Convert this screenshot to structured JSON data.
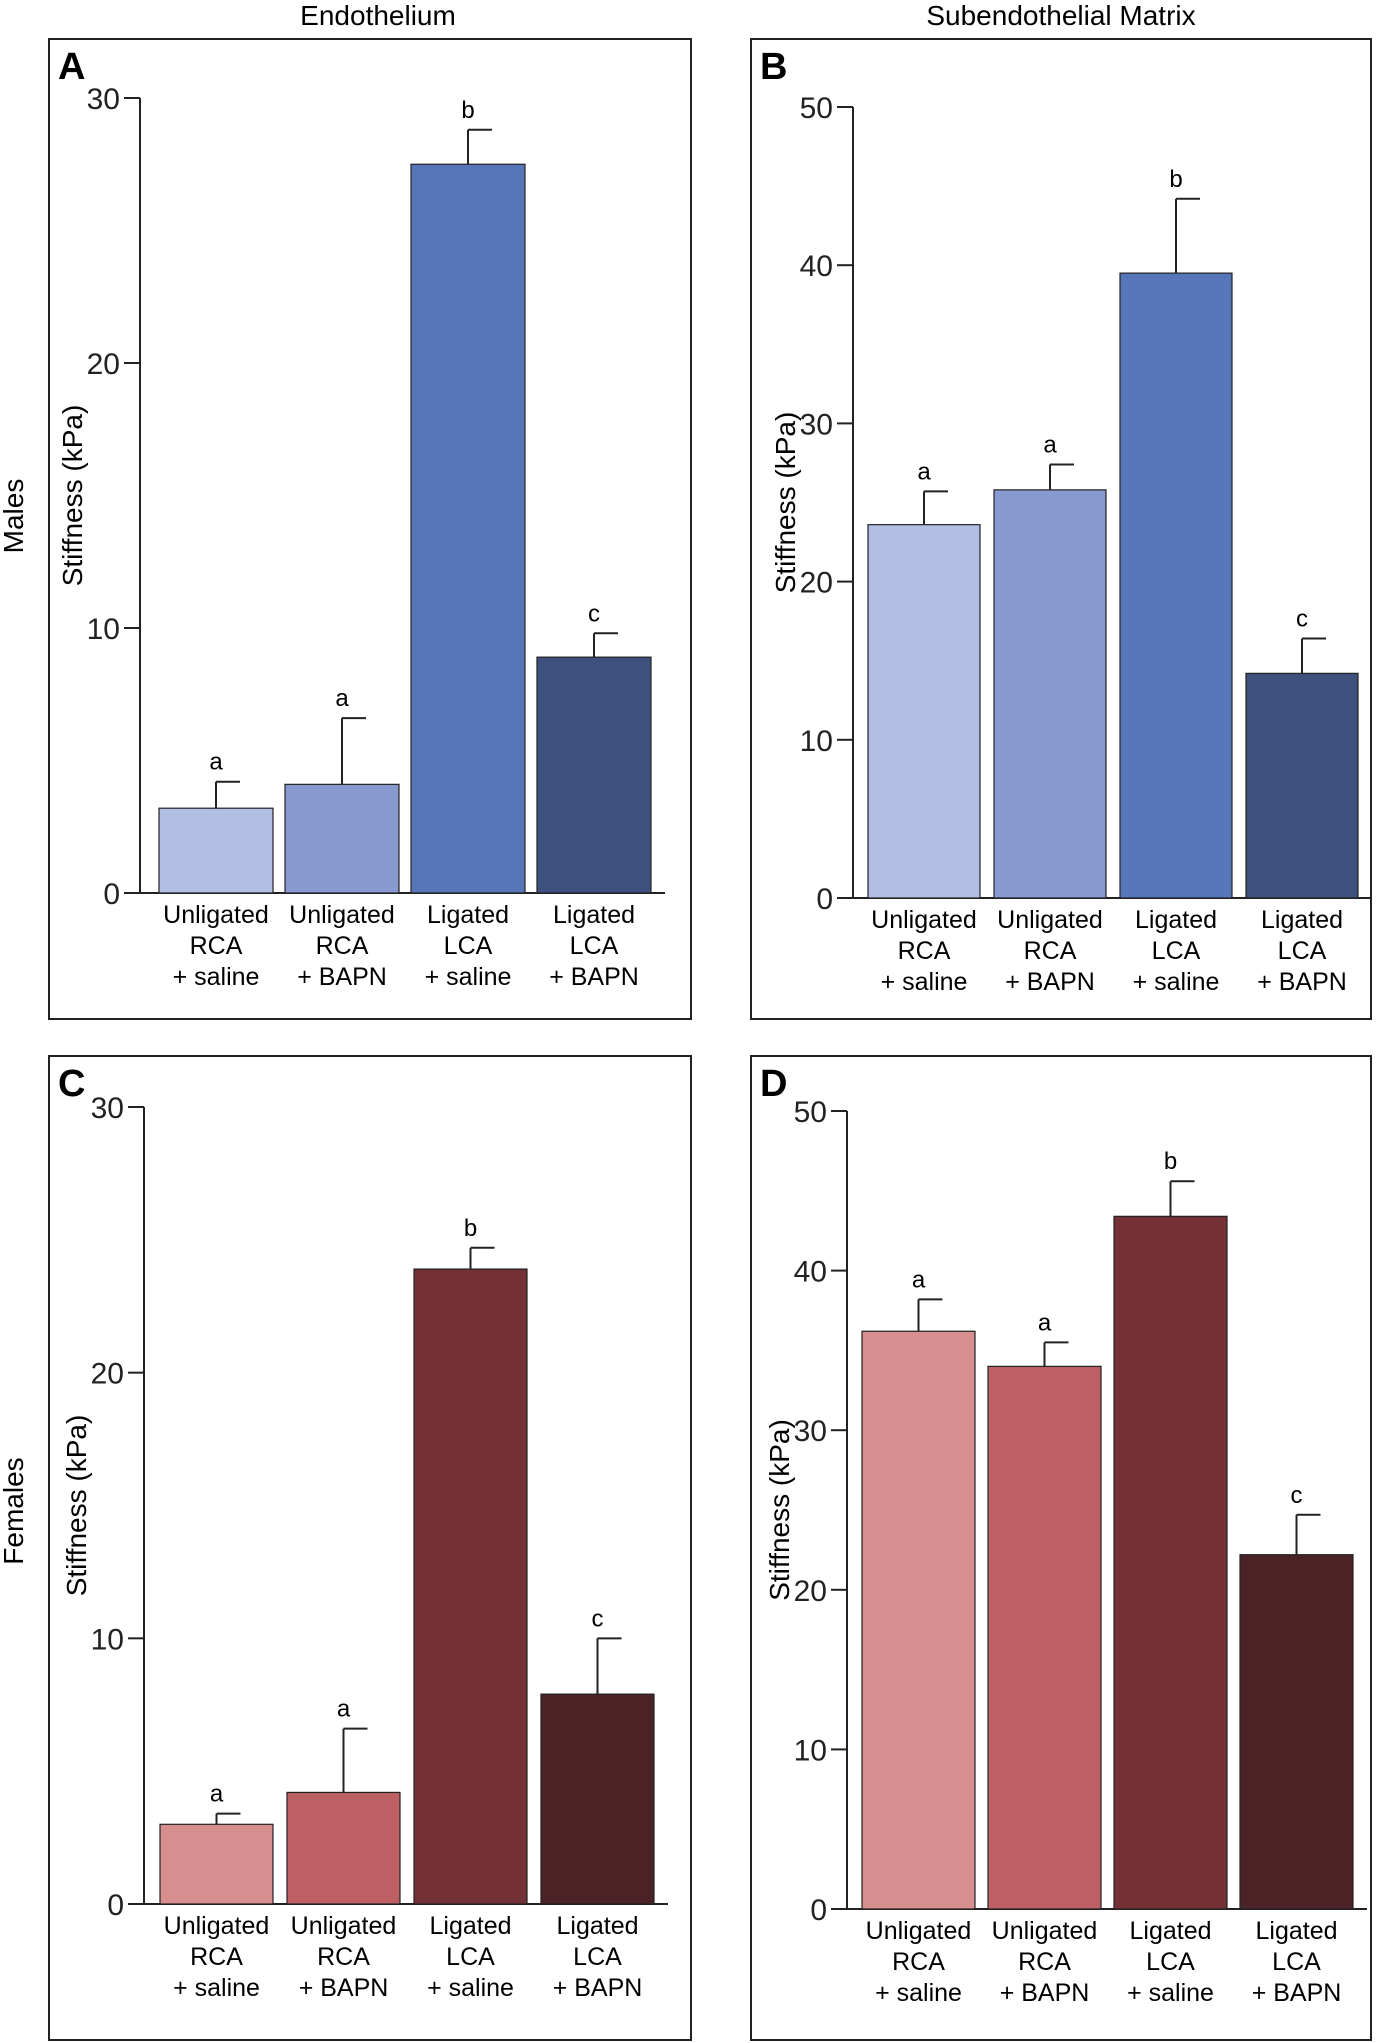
{
  "column_titles": [
    "Endothelium",
    "Subendothelial Matrix"
  ],
  "row_titles": [
    "Males",
    "Females"
  ],
  "chart_data": [
    {
      "type": "bar",
      "panel": "A",
      "ylabel": "Stiffness (kPa)",
      "ylim": [
        0,
        30
      ],
      "yticks": [
        0,
        10,
        20,
        30
      ],
      "categories": [
        [
          "Unligated",
          "RCA",
          "+ saline"
        ],
        [
          "Unligated",
          "RCA",
          "+ BAPN"
        ],
        [
          "Ligated",
          "LCA",
          "+ saline"
        ],
        [
          "Ligated",
          "LCA",
          "+ BAPN"
        ]
      ],
      "values": [
        3.2,
        4.1,
        27.5,
        8.9
      ],
      "errors": [
        1.0,
        2.5,
        1.3,
        0.9
      ],
      "sig_labels": [
        "a",
        "a",
        "b",
        "c"
      ],
      "colors": [
        "#b1bfe3",
        "#8799cf",
        "#5776b9",
        "#3e507d"
      ]
    },
    {
      "type": "bar",
      "panel": "B",
      "ylabel": "Stiffness (kPa)",
      "ylim": [
        0,
        50
      ],
      "yticks": [
        0,
        10,
        20,
        30,
        40,
        50
      ],
      "categories": [
        [
          "Unligated",
          "RCA",
          "+ saline"
        ],
        [
          "Unligated",
          "RCA",
          "+ BAPN"
        ],
        [
          "Ligated",
          "LCA",
          "+ saline"
        ],
        [
          "Ligated",
          "LCA",
          "+ BAPN"
        ]
      ],
      "values": [
        23.6,
        25.8,
        39.5,
        14.2
      ],
      "errors": [
        2.1,
        1.6,
        4.7,
        2.2
      ],
      "sig_labels": [
        "a",
        "a",
        "b",
        "c"
      ],
      "colors": [
        "#b1bfe3",
        "#8799cf",
        "#5776b9",
        "#3e507d"
      ]
    },
    {
      "type": "bar",
      "panel": "C",
      "ylabel": "Stiffness (kPa)",
      "ylim": [
        0,
        30
      ],
      "yticks": [
        0,
        10,
        20,
        30
      ],
      "categories": [
        [
          "Unligated",
          "RCA",
          "+ saline"
        ],
        [
          "Unligated",
          "RCA",
          "+ BAPN"
        ],
        [
          "Ligated",
          "LCA",
          "+ saline"
        ],
        [
          "Ligated",
          "LCA",
          "+ BAPN"
        ]
      ],
      "values": [
        3.0,
        4.2,
        23.9,
        7.9
      ],
      "errors": [
        0.4,
        2.4,
        0.8,
        2.1
      ],
      "sig_labels": [
        "a",
        "a",
        "b",
        "c"
      ],
      "colors": [
        "#d78e8f",
        "#bd6063",
        "#733136",
        "#4b2326"
      ]
    },
    {
      "type": "bar",
      "panel": "D",
      "ylabel": "Stiffness (kPa)",
      "ylim": [
        0,
        50
      ],
      "yticks": [
        0,
        10,
        20,
        30,
        40,
        50
      ],
      "categories": [
        [
          "Unligated",
          "RCA",
          "+ saline"
        ],
        [
          "Unligated",
          "RCA",
          "+ BAPN"
        ],
        [
          "Ligated",
          "LCA",
          "+ saline"
        ],
        [
          "Ligated",
          "LCA",
          "+ BAPN"
        ]
      ],
      "values": [
        36.2,
        34.0,
        43.4,
        22.2
      ],
      "errors": [
        2.0,
        1.5,
        2.2,
        2.5
      ],
      "sig_labels": [
        "a",
        "a",
        "b",
        "c"
      ],
      "colors": [
        "#d78e8f",
        "#bd6063",
        "#733136",
        "#4b2326"
      ]
    }
  ]
}
